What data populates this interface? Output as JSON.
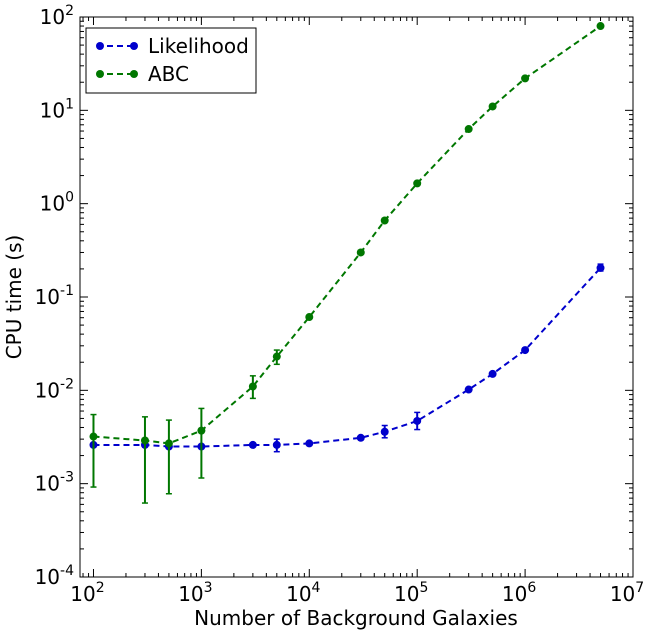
{
  "chart_data": {
    "type": "line",
    "xlabel": "Number of Background Galaxies",
    "ylabel": "CPU time (s)",
    "xscale": "log",
    "yscale": "log",
    "xlim": [
      75,
      10000000
    ],
    "ylim": [
      0.0001,
      100
    ],
    "grid": false,
    "legend_position": "top-left",
    "x_ticks": [
      {
        "base": "10",
        "exp": "2",
        "value": 100
      },
      {
        "base": "10",
        "exp": "3",
        "value": 1000
      },
      {
        "base": "10",
        "exp": "4",
        "value": 10000
      },
      {
        "base": "10",
        "exp": "5",
        "value": 100000
      },
      {
        "base": "10",
        "exp": "6",
        "value": 1000000
      },
      {
        "base": "10",
        "exp": "7",
        "value": 10000000
      }
    ],
    "y_ticks": [
      {
        "base": "10",
        "exp": "-4",
        "value": 0.0001
      },
      {
        "base": "10",
        "exp": "-3",
        "value": 0.001
      },
      {
        "base": "10",
        "exp": "-2",
        "value": 0.01
      },
      {
        "base": "10",
        "exp": "-1",
        "value": 0.1
      },
      {
        "base": "10",
        "exp": "0",
        "value": 1
      },
      {
        "base": "10",
        "exp": "1",
        "value": 10
      },
      {
        "base": "10",
        "exp": "2",
        "value": 100
      }
    ],
    "series": [
      {
        "name": "Likelihood",
        "color": "#0000cc",
        "x": [
          100,
          300,
          500,
          1000,
          3000,
          5000,
          10000,
          30000,
          50000,
          100000,
          300000,
          500000,
          1000000,
          5000000
        ],
        "y": [
          0.0026,
          0.0026,
          0.0025,
          0.0025,
          0.0026,
          0.0026,
          0.0027,
          0.0031,
          0.0036,
          0.0047,
          0.0102,
          0.015,
          0.027,
          0.205
        ],
        "y_low": [
          0.0026,
          0.0026,
          0.0025,
          0.0025,
          0.0026,
          0.0022,
          0.0027,
          0.0031,
          0.0031,
          0.0038,
          0.0102,
          0.015,
          0.027,
          0.19
        ],
        "y_high": [
          0.0026,
          0.0026,
          0.0025,
          0.0025,
          0.0026,
          0.003,
          0.0027,
          0.0031,
          0.0042,
          0.0058,
          0.0102,
          0.015,
          0.027,
          0.225
        ]
      },
      {
        "name": "ABC",
        "color": "#007700",
        "x": [
          100,
          300,
          500,
          1000,
          3000,
          5000,
          10000,
          30000,
          50000,
          100000,
          300000,
          500000,
          1000000,
          5000000
        ],
        "y": [
          0.0032,
          0.0029,
          0.0027,
          0.0037,
          0.011,
          0.023,
          0.061,
          0.3,
          0.66,
          1.65,
          6.3,
          11,
          22,
          80
        ],
        "y_low": [
          0.00092,
          0.00062,
          0.00078,
          0.00115,
          0.0082,
          0.019,
          0.061,
          0.3,
          0.66,
          1.65,
          6.3,
          11,
          22,
          80
        ],
        "y_high": [
          0.0055,
          0.0052,
          0.0048,
          0.0064,
          0.0143,
          0.027,
          0.061,
          0.3,
          0.66,
          1.65,
          6.3,
          11,
          22,
          80
        ]
      }
    ]
  }
}
